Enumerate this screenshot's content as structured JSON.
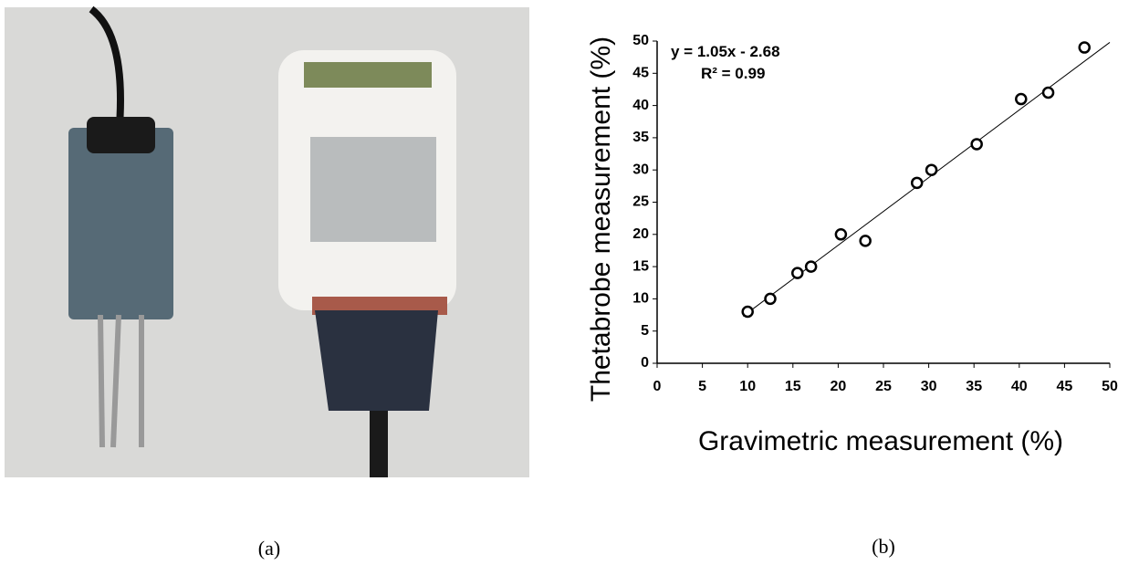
{
  "chart_data": {
    "type": "scatter",
    "x_label": "Gravimetric measurement (%)",
    "y_label": "Thetabrobe measurement (%)",
    "annotations": [
      "y = 1.05x - 2.68",
      "R² = 0.99"
    ],
    "x": [
      10,
      12.5,
      15.5,
      17,
      20.3,
      23,
      28.7,
      30.3,
      35.3,
      40.2,
      43.2,
      47.2
    ],
    "series": [
      {
        "color": "#000000",
        "values": [
          8,
          10,
          14,
          15,
          20,
          19,
          28,
          30,
          34,
          41,
          42,
          49
        ]
      }
    ],
    "fit_line": {
      "x": [
        9.5,
        50
      ],
      "values": [
        7.3,
        49.8
      ]
    },
    "xlim": [
      0,
      50
    ],
    "xticks": [
      0,
      5,
      10,
      15,
      20,
      25,
      30,
      35,
      40,
      45,
      50
    ],
    "ylim": [
      0,
      50
    ],
    "yticks": [
      0,
      5,
      10,
      15,
      20,
      25,
      30,
      35,
      40,
      45,
      50
    ],
    "grid": false
  },
  "captions": [
    "(a)",
    "(b)"
  ]
}
